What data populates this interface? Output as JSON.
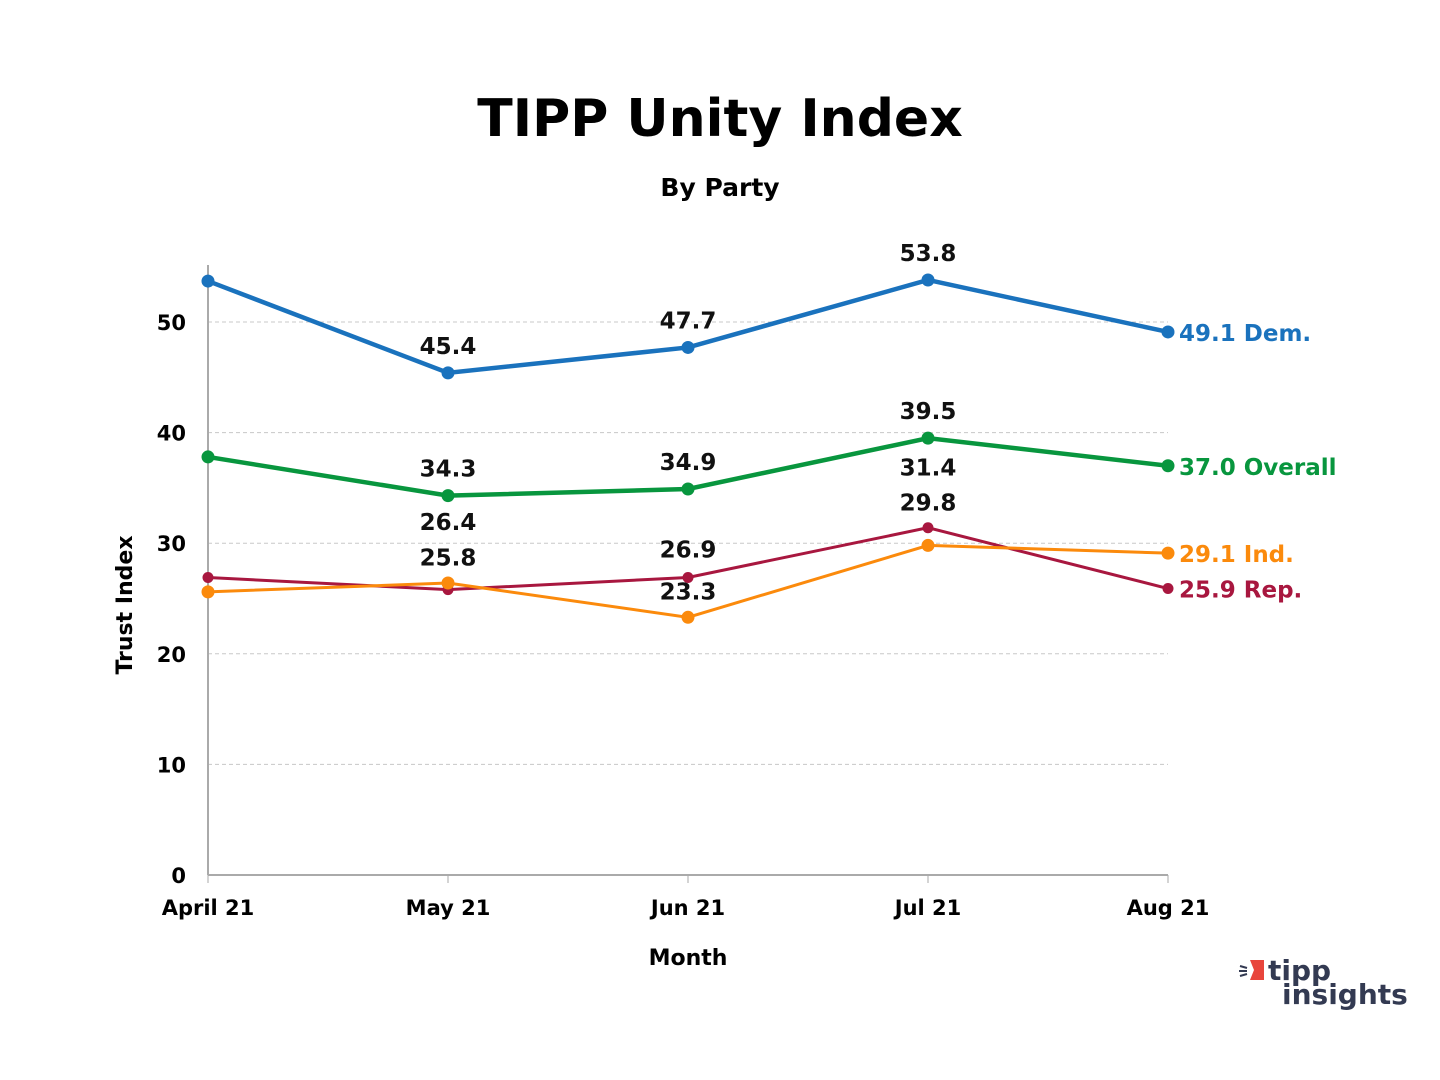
{
  "chart_data": {
    "type": "line",
    "title": "TIPP Unity Index",
    "subtitle": "By Party",
    "xlabel": "Month",
    "ylabel": "Trust Index",
    "categories": [
      "April 21",
      "May 21",
      "Jun 21",
      "Jul 21",
      "Aug 21"
    ],
    "ylim": [
      0,
      55
    ],
    "yticks": [
      0,
      10,
      20,
      30,
      40,
      50
    ],
    "grid": "horizontal dashed",
    "legend": "end-of-line labels",
    "series": [
      {
        "name": "Dem.",
        "color": "#1a72bd",
        "values": [
          53.7,
          45.4,
          47.7,
          53.8,
          49.1
        ],
        "end_label": "49.1 Dem.",
        "data_labels": [
          null,
          "45.4",
          "47.7",
          "53.8",
          null
        ]
      },
      {
        "name": "Overall",
        "color": "#08963e",
        "values": [
          37.8,
          34.3,
          34.9,
          39.5,
          37.0
        ],
        "end_label": "37.0 Overall",
        "data_labels": [
          null,
          "34.3",
          "34.9",
          "39.5",
          null
        ]
      },
      {
        "name": "Rep.",
        "color": "#a8173f",
        "values": [
          26.9,
          25.8,
          26.9,
          31.4,
          25.9
        ],
        "end_label": "25.9 Rep.",
        "data_labels": [
          null,
          "25.8",
          "26.9",
          "31.4",
          null
        ]
      },
      {
        "name": "Ind.",
        "color": "#fb8a0c",
        "values": [
          25.6,
          26.4,
          23.3,
          29.8,
          29.1
        ],
        "end_label": "29.1 Ind.",
        "data_labels": [
          null,
          "26.4",
          "23.3",
          "29.8",
          null
        ]
      }
    ]
  },
  "logo": {
    "line1": "tipp",
    "line2": "insights",
    "text_color": "#333a52",
    "accent": "#e8453c"
  }
}
